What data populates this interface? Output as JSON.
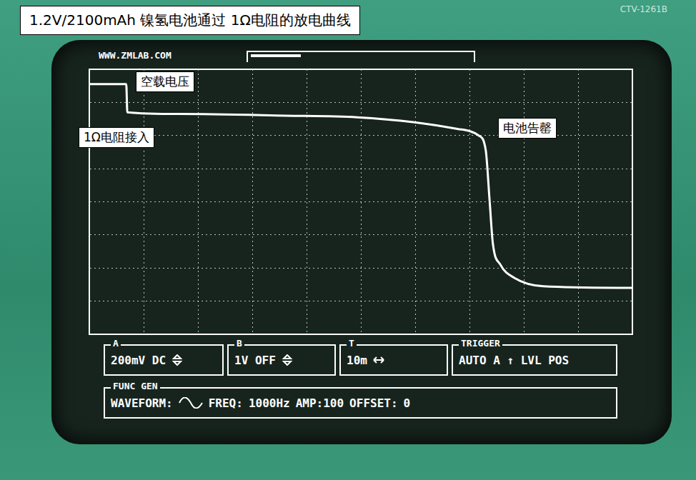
{
  "chart_data": {
    "type": "line",
    "title": "1.2V/2100mAh 镍氢电池通过 1Ω电阻的放电曲线",
    "x": [
      0,
      6.8,
      7.0,
      16.4,
      36.2,
      49.3,
      59.9,
      67.8,
      71.7,
      73.0,
      73.7,
      74.3,
      75.7,
      78.3,
      83.6,
      100
    ],
    "values": [
      1.25,
      1.25,
      1.08,
      1.07,
      1.06,
      1.05,
      1.02,
      0.98,
      0.94,
      0.85,
      0.55,
      0.29,
      0.16,
      0.08,
      0.03,
      0.02
    ],
    "color": "#ffffff",
    "xlim": [
      0,
      100
    ],
    "xticks": [
      0,
      10,
      20,
      30,
      40,
      50,
      60,
      70,
      80,
      90,
      100
    ],
    "ylim": [
      -0.26,
      1.34
    ],
    "yticks": [
      -0.26,
      -0.06,
      0.14,
      0.34,
      0.54,
      0.74,
      0.94,
      1.14,
      1.34
    ],
    "grid": true,
    "tick_labels": false,
    "line_style": "solid",
    "annotations": [
      "空载电压",
      "1Ω电阻接入",
      "电池告罄"
    ]
  },
  "model": "CTV-1261B",
  "watermark": "WWW.ZMLAB.COM",
  "controls": {
    "channel_a": {
      "label": "A",
      "setting": "200mV DC"
    },
    "channel_b": {
      "label": "B",
      "setting": "1V OFF"
    },
    "timebase": {
      "label": "T",
      "setting": "10m"
    },
    "trigger": {
      "label": "TRIGGER",
      "setting": "AUTO A ↑ LVL POS"
    },
    "func_gen": {
      "label": "FUNC GEN",
      "waveform": "WAVEFORM:",
      "freq": "FREQ:",
      "freq_value": "1000Hz",
      "amp": "AMP:100",
      "offset": "OFFSET:",
      "offset_value": "0"
    }
  }
}
